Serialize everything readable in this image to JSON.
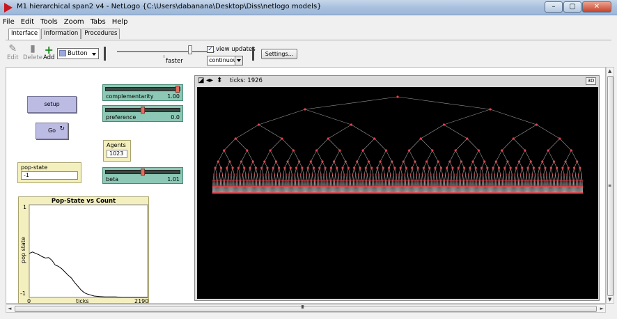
{
  "window": {
    "title": "M1 hierarchical span2 v4 - NetLogo {C:\\Users\\dabanana\\Desktop\\Diss\\netlogo models}",
    "minimize": "–",
    "maximize": "▢",
    "close": "✕"
  },
  "menu": [
    "File",
    "Edit",
    "Tools",
    "Zoom",
    "Tabs",
    "Help"
  ],
  "tabs": [
    "Interface",
    "Information",
    "Procedures"
  ],
  "toolbar": {
    "edit": "Edit",
    "delete": "Delete",
    "add": "Add",
    "widget_type": "Button",
    "speed_label": "faster",
    "speed_fraction": 0.75,
    "view_updates_checked": true,
    "view_updates_label": "view updates",
    "update_mode": "continuous",
    "settings": "Settings..."
  },
  "buttons": {
    "setup": "setup",
    "go": "Go"
  },
  "sliders": [
    {
      "name": "complementarity",
      "value": "1.00",
      "fraction": 1.0
    },
    {
      "name": "preference",
      "value": "0.0",
      "fraction": 0.5
    },
    {
      "name": "beta",
      "value": "1.01",
      "fraction": 0.5
    }
  ],
  "monitors": {
    "agents": {
      "name": "Agents",
      "value": "1023"
    },
    "pop_state": {
      "name": "pop-state",
      "value": "-1"
    }
  },
  "plot": {
    "title": "Pop-State vs Count",
    "xlabel": "ticks",
    "ylabel": "pop state",
    "xmin": "0",
    "xmax": "2190",
    "ymin": "-1",
    "ymax": "1"
  },
  "chart_data": {
    "type": "line",
    "title": "Pop-State vs Count",
    "xlabel": "ticks",
    "ylabel": "pop state",
    "xlim": [
      0,
      2190
    ],
    "ylim": [
      -1,
      1
    ],
    "series": [
      {
        "x": [
          0,
          60,
          120,
          180,
          240,
          300,
          360,
          420,
          480,
          540,
          600,
          660,
          720,
          780,
          840,
          900,
          960,
          1020,
          1080,
          1140,
          1200,
          1300,
          1400,
          1500,
          1600,
          1700,
          1800,
          1926,
          2000,
          2100,
          2190
        ],
        "y": [
          -0.05,
          -0.02,
          -0.05,
          -0.08,
          -0.12,
          -0.15,
          -0.14,
          -0.2,
          -0.3,
          -0.33,
          -0.38,
          -0.45,
          -0.52,
          -0.58,
          -0.68,
          -0.76,
          -0.84,
          -0.9,
          -0.93,
          -0.95,
          -0.97,
          -0.98,
          -0.99,
          -0.99,
          -0.99,
          -1.0,
          -1.0,
          -1.0,
          -1.0,
          -1.0,
          -1.0
        ]
      }
    ]
  },
  "view": {
    "ticks_label": "ticks: 1926",
    "btn3d": "3D",
    "tree_depth": 10,
    "node_color": "#e8434a",
    "link_color": "#9a9a9a"
  },
  "scroll": {
    "up": "▲",
    "down": "▼",
    "left": "◄",
    "right": "►",
    "grip_v": "≡",
    "grip_h": "Ⅲ"
  }
}
